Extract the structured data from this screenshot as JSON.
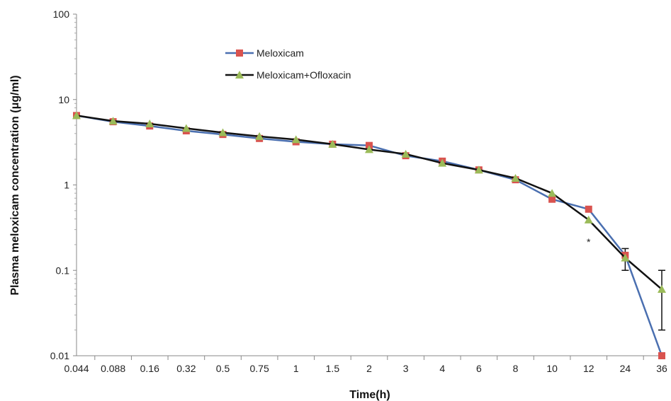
{
  "chart_data": {
    "type": "line",
    "title": "",
    "xlabel": "Time(h)",
    "ylabel": "Plasma meloxicam concentration (μg/ml)",
    "x_scale": "categorical",
    "y_scale": "log",
    "ylim": [
      0.01,
      100
    ],
    "yticks": [
      "100",
      "10",
      "1",
      "0.1",
      "0.01"
    ],
    "ytick_values": [
      100,
      10,
      1,
      0.1,
      0.01
    ],
    "categories": [
      "0.044",
      "0.088",
      "0.16",
      "0.32",
      "0.5",
      "0.75",
      "1",
      "1.5",
      "2",
      "3",
      "4",
      "6",
      "8",
      "10",
      "12",
      "24",
      "36"
    ],
    "grid": false,
    "legend_position": "top-left",
    "series": [
      {
        "name": "Meloxicam",
        "line_color": "#4a6fb0",
        "marker": "square",
        "marker_color": "#d9534f",
        "values": [
          6.5,
          5.5,
          4.9,
          4.3,
          3.9,
          3.5,
          3.2,
          3.0,
          2.9,
          2.2,
          1.9,
          1.5,
          1.15,
          0.68,
          0.52,
          0.15,
          0.01
        ]
      },
      {
        "name": "Meloxicam+Ofloxacin",
        "line_color": "#111111",
        "marker": "triangle",
        "marker_color": "#9bbb59",
        "values": [
          6.5,
          5.6,
          5.2,
          4.6,
          4.1,
          3.7,
          3.4,
          3.0,
          2.6,
          2.3,
          1.8,
          1.5,
          1.2,
          0.8,
          0.39,
          0.14,
          0.06
        ]
      }
    ],
    "error_bars": [
      {
        "category": "24",
        "low": 0.1,
        "high": 0.18
      },
      {
        "category": "36",
        "low": 0.02,
        "high": 0.1
      }
    ],
    "annotations": [
      {
        "text": "*",
        "category": "12",
        "y": 0.22
      }
    ]
  }
}
